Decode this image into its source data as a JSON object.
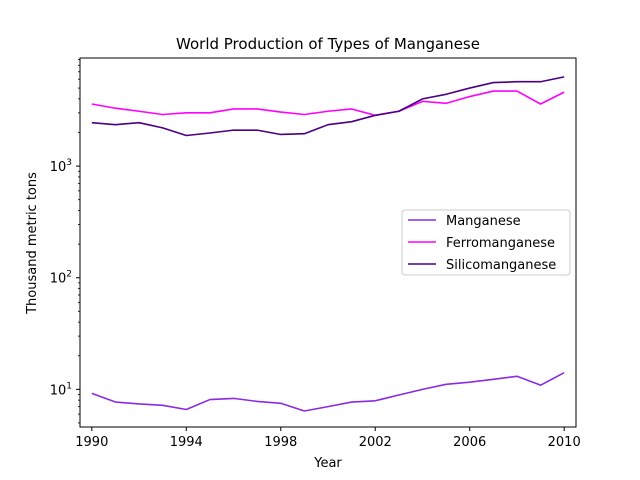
{
  "chart_data": {
    "type": "line",
    "title": "World Production of Types of Manganese",
    "xlabel": "Year",
    "ylabel": "Thousand metric tons",
    "yscale": "log",
    "xlim": [
      1989.5,
      2010.5
    ],
    "ylim": [
      4.6,
      9300
    ],
    "x": [
      1990,
      1991,
      1992,
      1993,
      1994,
      1995,
      1996,
      1997,
      1998,
      1999,
      2000,
      2001,
      2002,
      2003,
      2004,
      2005,
      2006,
      2007,
      2008,
      2009,
      2010
    ],
    "x_ticks": [
      1990,
      1994,
      1998,
      2002,
      2006,
      2010
    ],
    "x_tick_labels": [
      "1990",
      "1994",
      "1998",
      "2002",
      "2006",
      "2010"
    ],
    "y_ticks_major": [
      10,
      100,
      1000
    ],
    "y_tick_labels": {
      "base": [
        "10",
        "10",
        "10"
      ],
      "exponent": [
        "1",
        "2",
        "3"
      ]
    },
    "legend_position": "center-right",
    "grid": false,
    "series": [
      {
        "name": "Manganese",
        "color": "#8a2be2",
        "values": [
          9.2,
          7.7,
          7.4,
          7.2,
          6.6,
          8.1,
          8.3,
          7.8,
          7.5,
          6.4,
          7.0,
          7.7,
          7.9,
          8.9,
          10.0,
          11.1,
          11.6,
          12.3,
          13.1,
          10.9,
          14.1
        ]
      },
      {
        "name": "Ferromanganese",
        "color": "#ff00ff",
        "values": [
          3600,
          3300,
          3100,
          2900,
          3000,
          3000,
          3250,
          3250,
          3050,
          2900,
          3100,
          3250,
          2850,
          3100,
          3800,
          3650,
          4200,
          4700,
          4700,
          3600,
          4600
        ]
      },
      {
        "name": "Silicomanganese",
        "color": "#4b0082",
        "values": [
          2450,
          2350,
          2450,
          2200,
          1880,
          1980,
          2100,
          2100,
          1920,
          1950,
          2350,
          2500,
          2850,
          3100,
          4000,
          4400,
          5000,
          5600,
          5700,
          5700,
          6300
        ]
      }
    ]
  }
}
